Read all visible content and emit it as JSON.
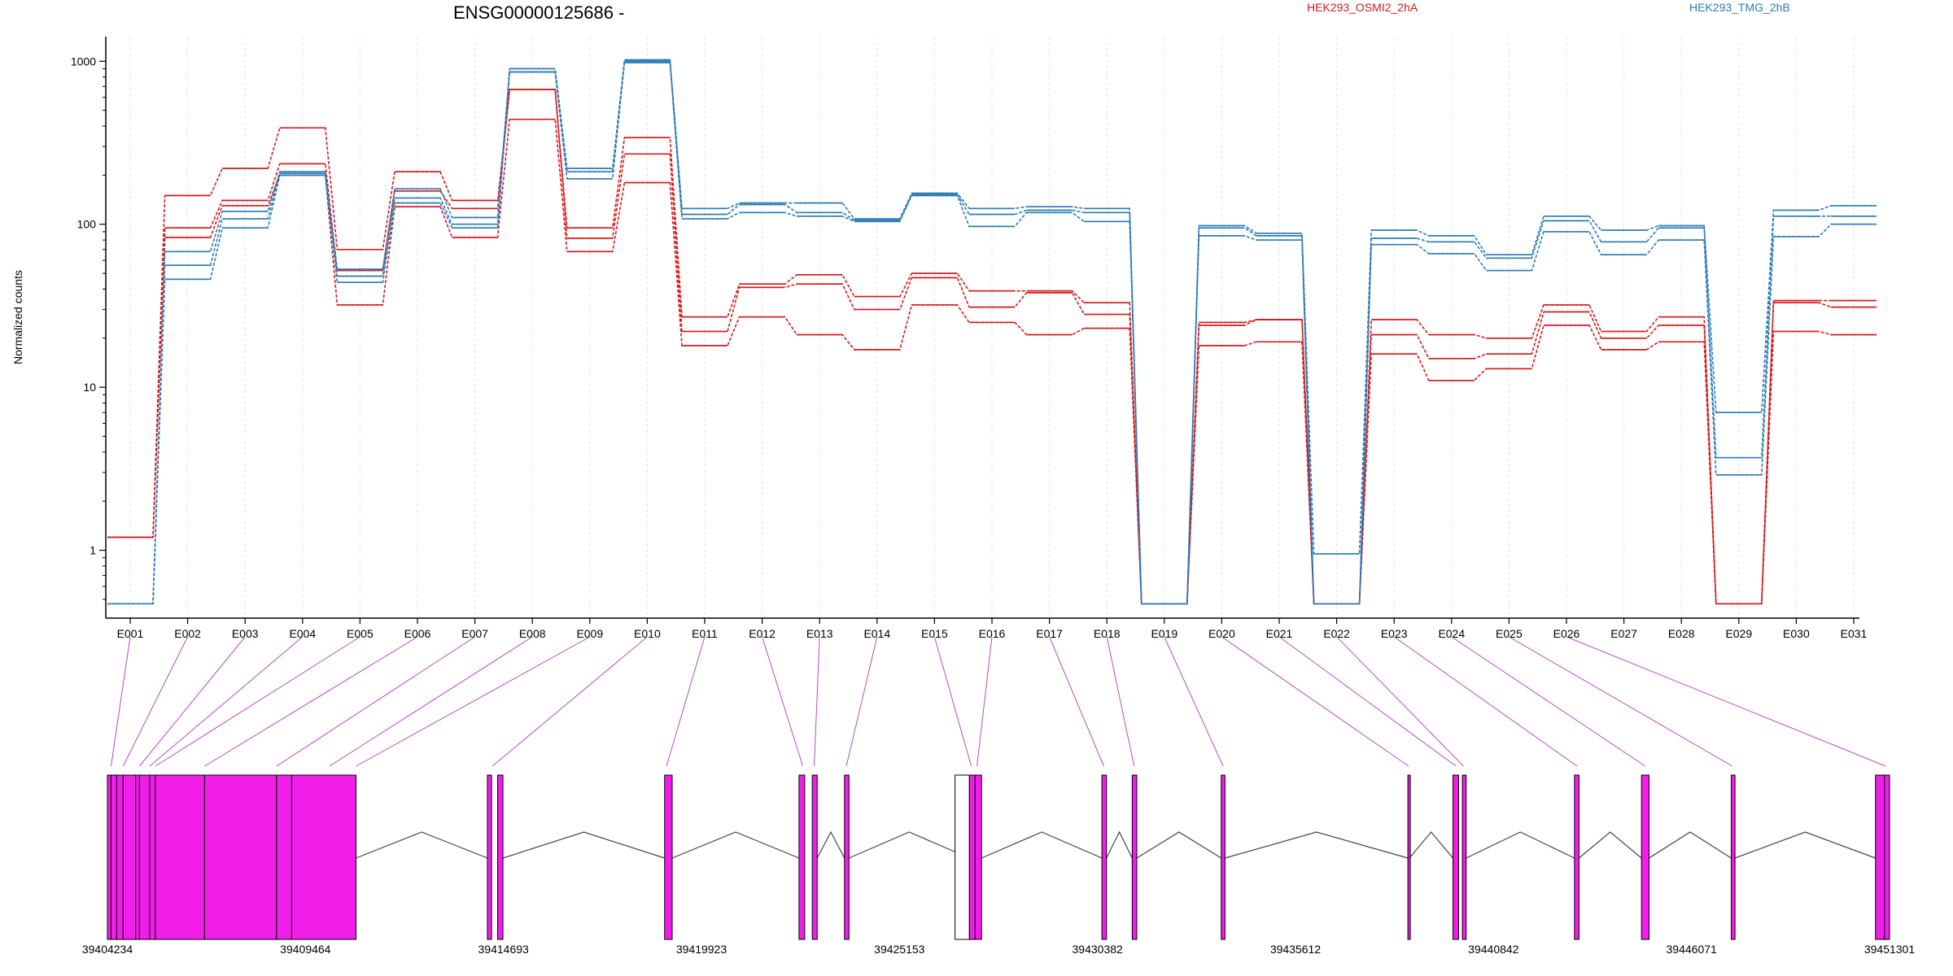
{
  "title": "ENSG00000125686 -",
  "ylabel": "Normalized counts",
  "legend": [
    {
      "name": "HEK293_OSMI2_2hA",
      "color": "#d7191c"
    },
    {
      "name": "HEK293_TMG_2hB",
      "color": "#2c7bb6"
    }
  ],
  "chart_data": {
    "type": "line",
    "yscale": "log",
    "ylim": [
      0.43,
      1500
    ],
    "yticks": [
      1,
      10,
      100,
      1000
    ],
    "ytick_labels": [
      "1",
      "10",
      "100",
      "1000"
    ],
    "categories": [
      "E001",
      "E002",
      "E003",
      "E004",
      "E005",
      "E006",
      "E007",
      "E008",
      "E009",
      "E010",
      "E011",
      "E012",
      "E013",
      "E014",
      "E015",
      "E016",
      "E017",
      "E018",
      "E019",
      "E020",
      "E021",
      "E022",
      "E023",
      "E024",
      "E025",
      "E026",
      "E027",
      "E028",
      "E029",
      "E030",
      "E031"
    ],
    "series": [
      {
        "group": "HEK293_OSMI2_2hA",
        "color": "#d7191c",
        "values": [
          1.2,
          150,
          220,
          390,
          70,
          210,
          140,
          670,
          95,
          340,
          27,
          43,
          49,
          36,
          50,
          39,
          39,
          33,
          0.47,
          25,
          26,
          0.47,
          26,
          21,
          20,
          32,
          22,
          27,
          0.47,
          34,
          34
        ]
      },
      {
        "group": "HEK293_OSMI2_2hA",
        "color": "#d7191c",
        "values": [
          1.2,
          95,
          140,
          235,
          52,
          160,
          125,
          670,
          82,
          270,
          22,
          41,
          43,
          30,
          47,
          31,
          38,
          28,
          0.47,
          24,
          26,
          0.47,
          21,
          15,
          16,
          29,
          20,
          24,
          0.47,
          33,
          31
        ]
      },
      {
        "group": "HEK293_OSMI2_2hA",
        "color": "#d7191c",
        "values": [
          1.2,
          83,
          130,
          200,
          32,
          128,
          83,
          440,
          68,
          180,
          18,
          27,
          21,
          17,
          32,
          25,
          21,
          23,
          0.47,
          18,
          19,
          0.47,
          16,
          11,
          13,
          24,
          17,
          19,
          0.47,
          22,
          21
        ]
      },
      {
        "group": "HEK293_TMG_2hB",
        "color": "#2c7bb6",
        "values": [
          0.47,
          68,
          120,
          210,
          53,
          165,
          110,
          900,
          220,
          1020,
          125,
          135,
          135,
          108,
          155,
          125,
          128,
          125,
          0.47,
          98,
          88,
          0.95,
          92,
          85,
          65,
          112,
          92,
          98,
          7,
          122,
          130
        ]
      },
      {
        "group": "HEK293_TMG_2hB",
        "color": "#2c7bb6",
        "values": [
          0.47,
          56,
          108,
          205,
          48,
          145,
          100,
          860,
          210,
          1000,
          115,
          132,
          118,
          106,
          152,
          115,
          122,
          118,
          0.47,
          95,
          85,
          0.47,
          82,
          78,
          62,
          105,
          78,
          95,
          3.7,
          112,
          112
        ]
      },
      {
        "group": "HEK293_TMG_2hB",
        "color": "#2c7bb6",
        "values": [
          0.47,
          46,
          95,
          200,
          44,
          135,
          95,
          860,
          190,
          980,
          108,
          118,
          112,
          104,
          150,
          97,
          118,
          104,
          0.47,
          85,
          80,
          0.47,
          75,
          66,
          52,
          90,
          65,
          80,
          2.9,
          84,
          100
        ]
      }
    ]
  },
  "genome": {
    "start": 39404234,
    "end": 39451301,
    "tick_labels": [
      "39404234",
      "39409464",
      "39414693",
      "39419923",
      "39425153",
      "39430382",
      "39435612",
      "39440842",
      "39446071",
      "39451301"
    ],
    "feature_color": "#f01ee8",
    "link_color": "#b04fc0",
    "exons": [
      [
        39404234,
        39404330
      ],
      [
        39404330,
        39404480
      ],
      [
        39404480,
        39404650
      ],
      [
        39404650,
        39404980
      ],
      [
        39404980,
        39405080
      ],
      [
        39405080,
        39405350
      ],
      [
        39405350,
        39405500
      ],
      [
        39405500,
        39406800
      ],
      [
        39406800,
        39408700
      ],
      [
        39408700,
        39409100
      ],
      [
        39409100,
        39410800
      ],
      [
        39414270,
        39414380
      ],
      [
        39414540,
        39414680
      ],
      [
        39418950,
        39419150
      ],
      [
        39422500,
        39422650
      ],
      [
        39422850,
        39422980
      ],
      [
        39423700,
        39423820
      ],
      [
        39427000,
        39427150
      ],
      [
        39427150,
        39427320
      ],
      [
        39430500,
        39430620
      ],
      [
        39431300,
        39431420
      ],
      [
        39433650,
        39433750
      ],
      [
        39438580,
        39438620
      ],
      [
        39439770,
        39439920
      ],
      [
        39440020,
        39440120
      ],
      [
        39442980,
        39443100
      ],
      [
        39444750,
        39444950
      ],
      [
        39447120,
        39447220
      ],
      [
        39450930,
        39451170
      ],
      [
        39451170,
        39451301
      ]
    ],
    "white_exons": [
      [
        39426620,
        39427000
      ]
    ],
    "introns": [
      [
        39410800,
        39414270
      ],
      [
        39414680,
        39418950
      ],
      [
        39419150,
        39422500
      ],
      [
        39422980,
        39423700
      ],
      [
        39423820,
        39427000
      ],
      [
        39427320,
        39430500
      ],
      [
        39430620,
        39431300
      ],
      [
        39431420,
        39433650
      ],
      [
        39433750,
        39438580
      ],
      [
        39438620,
        39439770
      ],
      [
        39440120,
        39442980
      ],
      [
        39443100,
        39444750
      ],
      [
        39444950,
        39447120
      ],
      [
        39447220,
        39450930
      ]
    ],
    "exon_link_targets": [
      39404330,
      39404650,
      39405080,
      39405350,
      39405500,
      39406800,
      39408700,
      39410100,
      39410800,
      39414400,
      39419000,
      39422600,
      39422900,
      39423750,
      39427050,
      39427200,
      39430550,
      39431350,
      39433700,
      39438600,
      39439850,
      39440050,
      39443050,
      39444850,
      39447150,
      39451200
    ]
  }
}
